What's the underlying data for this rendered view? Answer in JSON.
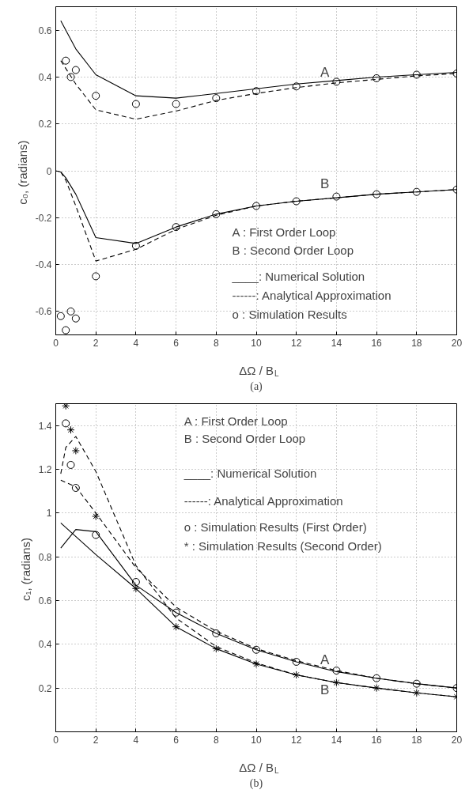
{
  "chart_data": [
    {
      "type": "line",
      "title": "(a)",
      "xlabel": "ΔΩ / B$_{L}$",
      "ylabel": "c₀,  (radians)",
      "xlim": [
        0,
        20
      ],
      "ylim": [
        -0.7,
        0.7
      ],
      "xticks": [
        0,
        2,
        4,
        6,
        8,
        10,
        12,
        14,
        16,
        18,
        20
      ],
      "yticks": [
        -0.6,
        -0.4,
        -0.2,
        0,
        0.2,
        0.4,
        0.6
      ],
      "grid": true,
      "series": [
        {
          "line_style": "solid",
          "color": "#000000",
          "x": [
            0.25,
            1,
            2,
            4,
            6,
            8,
            10,
            12,
            14,
            16,
            18,
            20
          ],
          "values": [
            0.64,
            0.52,
            0.41,
            0.32,
            0.31,
            0.33,
            0.35,
            0.37,
            0.385,
            0.4,
            0.41,
            0.42
          ]
        },
        {
          "line_style": "dashed",
          "color": "#000000",
          "x": [
            0.25,
            1,
            2,
            4,
            6,
            8,
            10,
            12,
            14,
            16,
            18,
            20
          ],
          "values": [
            0.47,
            0.37,
            0.26,
            0.22,
            0.255,
            0.3,
            0.33,
            0.355,
            0.375,
            0.39,
            0.405,
            0.415
          ]
        },
        {
          "type": "scatter",
          "marker": "circle",
          "color": "#000000",
          "x": [
            0.5,
            0.75,
            1,
            2,
            4,
            6,
            8,
            10,
            12,
            14,
            16,
            18,
            20
          ],
          "values": [
            0.47,
            0.4,
            0.43,
            0.32,
            0.285,
            0.285,
            0.31,
            0.34,
            0.36,
            0.38,
            0.395,
            0.41,
            0.415
          ]
        },
        {
          "line_style": "solid",
          "color": "#000000",
          "x": [
            0,
            0.25,
            0.5,
            1,
            2,
            4,
            6,
            8,
            10,
            12,
            14,
            16,
            18,
            20
          ],
          "values": [
            0,
            -0.005,
            -0.03,
            -0.1,
            -0.285,
            -0.31,
            -0.24,
            -0.185,
            -0.15,
            -0.13,
            -0.115,
            -0.1,
            -0.09,
            -0.08
          ]
        },
        {
          "line_style": "dashed",
          "color": "#000000",
          "x": [
            0.25,
            0.5,
            1,
            2,
            4,
            6,
            8,
            10,
            12,
            14,
            16,
            18,
            20
          ],
          "values": [
            -0.005,
            -0.04,
            -0.15,
            -0.385,
            -0.335,
            -0.25,
            -0.19,
            -0.15,
            -0.13,
            -0.115,
            -0.1,
            -0.09,
            -0.08
          ]
        },
        {
          "type": "scatter",
          "marker": "circle",
          "color": "#000000",
          "x": [
            0.25,
            0.5,
            0.75,
            1,
            2,
            4,
            6,
            8,
            10,
            12,
            14,
            16,
            18,
            20
          ],
          "values": [
            -0.62,
            -0.68,
            -0.6,
            -0.63,
            -0.45,
            -0.32,
            -0.24,
            -0.185,
            -0.15,
            -0.13,
            -0.11,
            -0.1,
            -0.09,
            -0.08
          ]
        }
      ],
      "annotations": [
        "A",
        "B",
        "A  : First Order Loop",
        "B  : Second Order Loop",
        "____: Numerical Solution",
        "------: Analytical Approximation",
        "o  : Simulation Results"
      ]
    },
    {
      "type": "line",
      "title": "(b)",
      "xlabel": "ΔΩ / B$_{L}$",
      "ylabel": "c₁,  (radians)",
      "xlim": [
        0,
        20
      ],
      "ylim": [
        0,
        1.5
      ],
      "xticks": [
        0,
        2,
        4,
        6,
        8,
        10,
        12,
        14,
        16,
        18,
        20
      ],
      "yticks": [
        0.2,
        0.4,
        0.6,
        0.8,
        {
          "value": 1,
          "label": "1"
        },
        1.2,
        1.4
      ],
      "grid": true,
      "series": [
        {
          "line_style": "solid",
          "color": "#000000",
          "x": [
            0.25,
            1,
            2,
            4,
            6,
            8,
            10,
            12,
            14,
            16,
            18,
            20
          ],
          "values": [
            0.84,
            0.925,
            0.915,
            0.67,
            0.545,
            0.45,
            0.375,
            0.32,
            0.275,
            0.245,
            0.22,
            0.2
          ]
        },
        {
          "line_style": "solid",
          "color": "#000000",
          "x": [
            0.25,
            2,
            4,
            6,
            8,
            10,
            12,
            14,
            16,
            18,
            20
          ],
          "values": [
            0.955,
            0.81,
            0.655,
            0.48,
            0.38,
            0.31,
            0.26,
            0.225,
            0.2,
            0.178,
            0.16
          ]
        },
        {
          "line_style": "dashed",
          "color": "#000000",
          "x": [
            0.25,
            1,
            2,
            4,
            6,
            8,
            10,
            12,
            14,
            16,
            18,
            20
          ],
          "values": [
            1.15,
            1.12,
            1.0,
            0.75,
            0.57,
            0.46,
            0.38,
            0.325,
            0.28,
            0.245,
            0.22,
            0.2
          ]
        },
        {
          "line_style": "dashed",
          "color": "#000000",
          "x": [
            0.25,
            0.5,
            1,
            2,
            4,
            6,
            8,
            10,
            12,
            14,
            16,
            18,
            20
          ],
          "values": [
            1.18,
            1.3,
            1.35,
            1.19,
            0.76,
            0.52,
            0.39,
            0.315,
            0.26,
            0.225,
            0.2,
            0.178,
            0.16
          ]
        },
        {
          "type": "scatter",
          "marker": "circle",
          "color": "#000000",
          "x": [
            0.5,
            0.75,
            1,
            2,
            4,
            6,
            8,
            10,
            12,
            14,
            16,
            18,
            20
          ],
          "values": [
            1.41,
            1.22,
            1.115,
            0.9,
            0.685,
            0.545,
            0.45,
            0.375,
            0.32,
            0.28,
            0.245,
            0.22,
            0.2
          ]
        },
        {
          "type": "scatter",
          "marker": "cross",
          "color": "#000000",
          "x": [
            0.5,
            0.75,
            1,
            2,
            4,
            6,
            8,
            10,
            12,
            14,
            16,
            18,
            20
          ],
          "values": [
            1.49,
            1.38,
            1.285,
            0.985,
            0.655,
            0.48,
            0.38,
            0.31,
            0.26,
            0.225,
            0.2,
            0.178,
            0.16
          ]
        }
      ],
      "annotations": [
        "A",
        "B",
        "A  : First Order Loop",
        "B  : Second Order Loop",
        "____: Numerical Solution",
        "------: Analytical Approximation",
        "o  : Simulation Results (First Order)",
        "  *  : Simulation Results (Second Order)"
      ]
    }
  ]
}
